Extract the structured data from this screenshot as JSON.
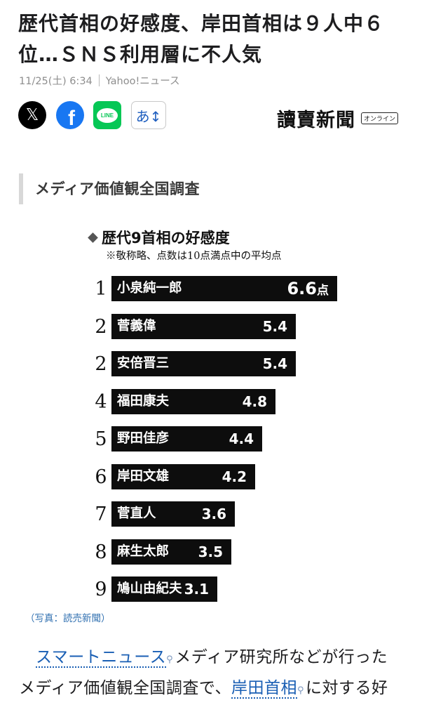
{
  "article": {
    "title": "歴代首相の好感度、岸田首相は９人中６位…ＳＮＳ利用層に不人気",
    "date": "11/25(土) 6:34",
    "source": "Yahoo!ニュース"
  },
  "share": {
    "x_label": "𝕏",
    "facebook_label": "f",
    "line_label": "LINE",
    "font_label": "あ↕"
  },
  "brand": {
    "name": "讀賣新聞",
    "tag": "オンライン"
  },
  "section": {
    "heading": "メディア価値観全国調査"
  },
  "chart_data": {
    "type": "bar",
    "title": "歴代9首相の好感度",
    "note": "※敬称略、点数は10点満点中の平均点",
    "unit": "点",
    "xlim": [
      0,
      6.6
    ],
    "rows": [
      {
        "rank": "1",
        "name": "小泉純一郎",
        "value": 6.6
      },
      {
        "rank": "2",
        "name": "菅義偉",
        "value": 5.4
      },
      {
        "rank": "2",
        "name": "安倍晋三",
        "value": 5.4
      },
      {
        "rank": "4",
        "name": "福田康夫",
        "value": 4.8
      },
      {
        "rank": "5",
        "name": "野田佳彦",
        "value": 4.4
      },
      {
        "rank": "6",
        "name": "岸田文雄",
        "value": 4.2
      },
      {
        "rank": "7",
        "name": "菅直人",
        "value": 3.6
      },
      {
        "rank": "8",
        "name": "麻生太郎",
        "value": 3.5
      },
      {
        "rank": "9",
        "name": "鳩山由紀夫",
        "value": 3.1
      }
    ]
  },
  "caption": "（写真：読売新聞）",
  "body": {
    "link1": "スマートニュース",
    "text1": "メディア研究所などが行った",
    "text2": "メディア価値観全国調査で、",
    "link2": "岸田首相",
    "text3": "に対する好"
  }
}
